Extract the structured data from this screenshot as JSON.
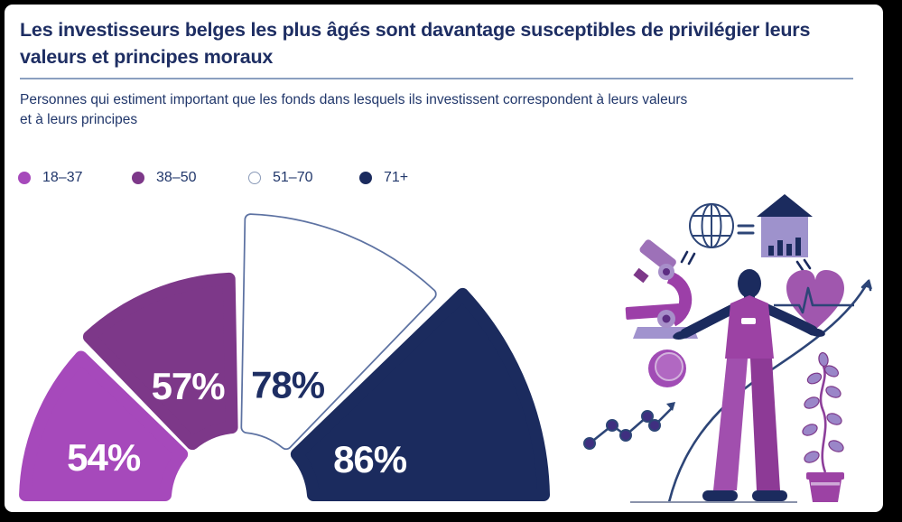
{
  "header": {
    "title_lines": [
      "Les investisseurs belges les plus âgés sont davantage susceptibles de privilégier leurs",
      "valeurs et principes moraux"
    ],
    "subtitle_lines": [
      "Personnes qui estiment important que les fonds dans lesquels ils investissent correspondent à leurs valeurs",
      "et à leurs principes"
    ]
  },
  "legend": {
    "items": [
      {
        "label": "18–37",
        "color": "#a649bb",
        "outlined": false
      },
      {
        "label": "38–50",
        "color": "#7d3889",
        "outlined": false
      },
      {
        "label": "51–70",
        "color": "#ffffff",
        "outlined": true
      },
      {
        "label": "71+",
        "color": "#1b2b5e",
        "outlined": false
      }
    ],
    "outline_color": "#8a9ab8"
  },
  "chart_data": {
    "type": "pie",
    "variant": "half-donut fan / polar rose, 4 equal 45° sectors, radius proportional to value",
    "title": "Les investisseurs belges les plus âgés sont davantage susceptibles de privilégier leurs valeurs et principes moraux",
    "subtitle": "Personnes qui estiment important que les fonds dans lesquels ils investissent correspondent à leurs valeurs et à leurs principes",
    "categories": [
      "18–37",
      "38–50",
      "51–70",
      "71+"
    ],
    "values": [
      54,
      57,
      78,
      86
    ],
    "unit": "%",
    "segment_colors": [
      "#a649bb",
      "#7d3889",
      "#ffffff",
      "#1b2b5e"
    ],
    "label_colors": [
      "#ffffff",
      "#ffffff",
      "#1e2e63",
      "#ffffff"
    ],
    "white_segment_outline": "#5d72a2",
    "angle_span_deg": 180,
    "legend_position": "top-left"
  },
  "illustration": {
    "description": "Person balancing investing-research icons: microscope, coin, growth line chart, globe equals bank with bar chart, heart with pulse, potted plant, big ascending arrow",
    "icon_names": [
      "person-figure",
      "microscope-icon",
      "coin-icon",
      "growth-line-icon",
      "globe-icon",
      "equals-icon",
      "bank-bar-chart-icon",
      "heart-pulse-icon",
      "plant-icon",
      "ascending-arrow-icon",
      "ground-line"
    ],
    "palette": {
      "navy": "#1b2b5e",
      "line_navy": "#2d4577",
      "magenta": "#9c42a4",
      "light_magenta": "#b168c2",
      "lavender": "#9e92cc",
      "light_lavender": "#a193ce",
      "leaf": "#9a86c8",
      "indigo_dot": "#3f2f80",
      "ground": "#8a93ab"
    }
  },
  "colors": {
    "frame": "#000000",
    "panel": "#ffffff",
    "title": "#1e2e63",
    "rule": "#8ba0c0",
    "body_text": "#21376b"
  }
}
